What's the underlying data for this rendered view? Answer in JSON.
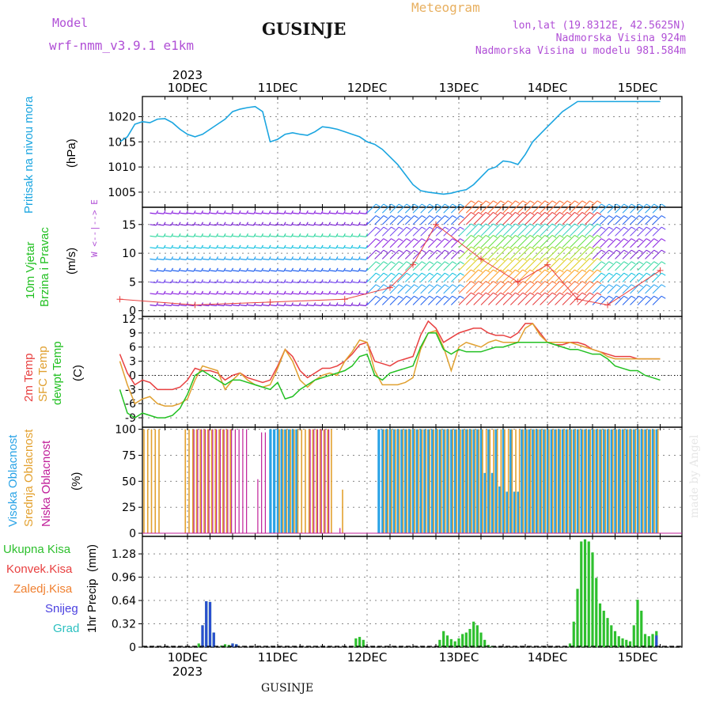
{
  "header": {
    "model_label": "Model",
    "model_name": "wrf-nmm_v3.9.1  e1km",
    "title": "GUSINJE",
    "meteogram": "Meteogram",
    "lonlat": "lon,lat (19.8312E, 42.5625N)",
    "elevation": "Nadmorska Visina 924m",
    "elevation_model": "Nadmorska Visina u modelu 981.584m",
    "year": "2023",
    "footer": "GUSINJE",
    "watermark": "made by Angel"
  },
  "days": [
    "10DEC",
    "11DEC",
    "12DEC",
    "13DEC",
    "14DEC",
    "15DEC"
  ],
  "colors": {
    "pressure": "#1aa5e0",
    "temp2m": "#e84040",
    "sfc": "#e0a030",
    "dew": "#22c022",
    "high_cloud": "#29a3e6",
    "mid_cloud": "#e3a12f",
    "low_cloud": "#c0209a",
    "precip": "#2ec02e",
    "snow": "#2a4fd0",
    "grid": "#888888"
  },
  "chart_data": [
    {
      "type": "line",
      "panel": "pressure",
      "ylabel_main": "Pritisak na nivou mora",
      "unit": "(hPa)",
      "ylim": [
        1002,
        1024
      ],
      "yticks": [
        1005,
        1010,
        1015,
        1020
      ],
      "x": [
        0,
        2,
        4,
        6,
        8,
        10,
        12,
        14,
        16,
        18,
        20,
        22,
        24,
        26,
        28,
        30,
        32,
        34,
        36,
        38,
        40,
        42,
        44,
        46,
        48,
        50,
        52,
        54,
        56,
        58,
        60,
        62,
        64,
        66,
        68,
        70,
        72,
        74,
        76,
        78,
        80,
        82,
        84,
        86,
        88,
        90,
        92,
        94,
        96,
        98,
        100,
        102,
        104,
        106,
        108,
        110,
        112,
        114,
        116,
        118,
        120,
        122,
        124,
        126,
        128,
        130,
        132,
        134,
        136,
        138,
        140,
        142,
        144
      ],
      "values": [
        1015,
        1016,
        1018.5,
        1019,
        1018.8,
        1019.5,
        1019.6,
        1018.8,
        1017.5,
        1016.5,
        1016,
        1016.5,
        1017.5,
        1018.5,
        1019.5,
        1021,
        1021.5,
        1021.8,
        1022,
        1021,
        1015,
        1015.5,
        1016.5,
        1016.8,
        1016.5,
        1016.3,
        1017,
        1018,
        1017.8,
        1017.5,
        1017,
        1016.5,
        1016,
        1015,
        1014.5,
        1013.5,
        1012,
        1010.5,
        1008.5,
        1006.5,
        1005.3,
        1005,
        1004.8,
        1004.6,
        1004.8,
        1005.2,
        1005.5,
        1006.5,
        1008,
        1009.5,
        1010,
        1011.2,
        1011,
        1010.5,
        1012.5,
        1015,
        1016.5,
        1018,
        1019.5,
        1021,
        1022,
        1023,
        1023,
        1023,
        1023,
        1023,
        1023,
        1023,
        1023,
        1023,
        1023,
        1023,
        1023
      ],
      "series": [
        {
          "name": "",
          "color_key": "pressure"
        }
      ]
    },
    {
      "type": "wind-barbs",
      "panel": "wind",
      "ylabel_main": "10m Vjetar",
      "ylabel_sub": "Brzina i Pravac",
      "unit": "(m/s)",
      "compass": "W <--|--> E",
      "ylim": [
        -1,
        18
      ],
      "yticks": [
        0,
        5,
        10,
        15
      ],
      "segments": [
        {
          "x0": 0,
          "x1": 40,
          "dir": "west",
          "speeds": [
            1,
            3,
            5,
            7,
            9,
            11,
            13,
            15,
            17
          ]
        },
        {
          "x0": 40,
          "x1": 66,
          "dir": "west",
          "speeds": [
            1,
            3,
            5,
            7,
            9,
            11,
            13,
            15,
            17
          ]
        },
        {
          "x0": 66,
          "x1": 90,
          "dir": "southwest",
          "speeds": [
            1,
            3,
            5,
            7,
            9,
            11,
            13,
            15,
            17
          ]
        },
        {
          "x0": 90,
          "x1": 126,
          "dir": "southwest-strong",
          "speeds": [
            1,
            3,
            5,
            7,
            9,
            11,
            13,
            15,
            17
          ]
        },
        {
          "x0": 126,
          "x1": 144,
          "dir": "southwest",
          "speeds": [
            1,
            3,
            5,
            7,
            9,
            11,
            13,
            15,
            17
          ]
        }
      ],
      "wind_speed_line": [
        {
          "x": 0,
          "y": 2
        },
        {
          "x": 20,
          "y": 1
        },
        {
          "x": 40,
          "y": 1.5
        },
        {
          "x": 60,
          "y": 2
        },
        {
          "x": 72,
          "y": 4
        },
        {
          "x": 78,
          "y": 8
        },
        {
          "x": 84,
          "y": 15
        },
        {
          "x": 96,
          "y": 9
        },
        {
          "x": 106,
          "y": 5
        },
        {
          "x": 114,
          "y": 8
        },
        {
          "x": 122,
          "y": 2
        },
        {
          "x": 130,
          "y": 1
        },
        {
          "x": 144,
          "y": 7
        }
      ]
    },
    {
      "type": "line",
      "panel": "temperature",
      "ylabels": [
        "2m Temp",
        "SFC Temp",
        "dewpt Temp"
      ],
      "unit": "(C)",
      "ylim": [
        -11,
        12.5
      ],
      "yticks": [
        -9,
        -6,
        -3,
        0,
        3,
        6,
        9,
        12
      ],
      "x": [
        0,
        2,
        4,
        6,
        8,
        10,
        12,
        14,
        16,
        18,
        20,
        22,
        24,
        26,
        28,
        30,
        32,
        34,
        36,
        38,
        40,
        42,
        44,
        46,
        48,
        50,
        52,
        54,
        56,
        58,
        60,
        62,
        64,
        66,
        68,
        70,
        72,
        74,
        76,
        78,
        80,
        82,
        84,
        86,
        88,
        90,
        92,
        94,
        96,
        98,
        100,
        102,
        104,
        106,
        108,
        110,
        112,
        114,
        116,
        118,
        120,
        122,
        124,
        126,
        128,
        130,
        132,
        134,
        136,
        138,
        140,
        142,
        144
      ],
      "series": [
        {
          "name": "2m Temp",
          "color_key": "temp2m",
          "values": [
            4.5,
            0.5,
            -2,
            -1,
            -1.5,
            -3,
            -3,
            -3,
            -2.5,
            -1,
            1.5,
            1,
            1,
            0.5,
            -1,
            0,
            0.5,
            -0.5,
            -1,
            -1.5,
            -1,
            2,
            5.5,
            4,
            1,
            -0.5,
            0.5,
            1.5,
            1.5,
            2,
            3,
            4.5,
            6.5,
            7,
            3,
            2.5,
            2,
            3,
            3.5,
            4,
            8.5,
            11.5,
            10,
            7,
            8,
            9,
            9.5,
            10,
            10,
            9,
            8.5,
            8.5,
            8,
            9,
            11,
            11,
            9,
            7,
            6.5,
            6.5,
            7,
            7,
            6.5,
            5.5,
            5,
            4.5,
            4,
            4,
            4,
            3.5,
            3.5,
            3.5,
            3.5
          ]
        },
        {
          "name": "SFC Temp",
          "color_key": "sfc",
          "values": [
            3,
            -2,
            -6,
            -5,
            -4.5,
            -6,
            -6.5,
            -6.5,
            -6,
            -5,
            -1,
            2,
            1.5,
            1,
            -3,
            -1,
            0.5,
            -1,
            -2,
            -2.5,
            -2,
            1.5,
            5.5,
            3,
            -1,
            -2.5,
            -1,
            0,
            0.5,
            0,
            3,
            5,
            7.5,
            7,
            1,
            -2,
            -2,
            -2,
            -1.5,
            -0.5,
            5.5,
            9,
            9.5,
            6,
            1,
            6,
            7,
            6.5,
            6,
            7,
            7.5,
            7,
            7,
            7,
            10,
            11,
            8.5,
            7,
            7,
            7,
            7,
            6.5,
            6,
            5.5,
            5,
            4,
            3.5,
            3.5,
            3.5,
            3.5,
            3.5,
            3.5,
            3.5
          ]
        },
        {
          "name": "dewpt Temp",
          "color_key": "dew",
          "values": [
            -3,
            -8,
            -9,
            -8,
            -8.5,
            -9,
            -9,
            -8.5,
            -7,
            -4,
            0,
            1,
            0,
            -1,
            -2,
            -1,
            -1,
            -1.5,
            -2,
            -2.5,
            -3,
            -1.5,
            -5,
            -4.5,
            -3,
            -2,
            -1,
            -0.5,
            0,
            0.5,
            1,
            2,
            4,
            4.5,
            0,
            -1,
            0.5,
            1,
            1.5,
            2,
            6,
            9,
            9,
            5.5,
            4.5,
            5.5,
            5,
            5,
            5,
            5.5,
            6,
            6,
            6.5,
            7,
            7,
            7,
            7,
            7,
            6.5,
            6,
            5.5,
            5.5,
            5,
            4.5,
            4.5,
            3.5,
            2,
            1.5,
            1,
            1,
            0,
            -0.5,
            -1
          ]
        }
      ]
    },
    {
      "type": "bar",
      "panel": "clouds",
      "ylabels": [
        "Visoka Oblacnost",
        "Srednja Oblacnost",
        "Niska Oblacnost"
      ],
      "unit": "(%)",
      "ylim": [
        -3,
        102
      ],
      "yticks": [
        0,
        25,
        50,
        75,
        100
      ],
      "series": [
        {
          "name": "Visoka Oblacnost",
          "color_key": "high_cloud",
          "ranges": [
            [
              1,
              7,
              100
            ],
            [
              40,
              48,
              100
            ],
            [
              69,
              144,
              100
            ]
          ],
          "dips": [
            [
              97,
              58
            ],
            [
              99,
              58
            ],
            [
              101,
              45
            ],
            [
              103,
              40
            ],
            [
              105,
              40
            ],
            [
              106,
              40
            ]
          ]
        },
        {
          "name": "Srednja Oblacnost",
          "color_key": "mid_cloud",
          "ranges": [
            [
              6,
              11,
              100
            ],
            [
              17,
              30,
              100
            ],
            [
              42,
              57,
              100
            ],
            [
              70,
              144,
              100
            ]
          ],
          "dips": [
            [
              59,
              42
            ]
          ]
        },
        {
          "name": "Niska Oblacnost",
          "color_key": "low_cloud",
          "ranges": [
            [
              0,
              1,
              10
            ],
            [
              19,
              34,
              100
            ],
            [
              50,
              56,
              100
            ]
          ],
          "singles": [
            [
              36,
              52
            ],
            [
              37,
              97
            ],
            [
              38,
              97
            ],
            [
              58,
              5
            ]
          ]
        }
      ]
    },
    {
      "type": "bar",
      "panel": "precipitation",
      "ylabel_main": "1hr Precip",
      "unit": "(mm)",
      "legend": [
        "Ukupna Kisa",
        "Konvek.Kisa",
        "Zaledj.Kisa",
        "Snijeg",
        "Grad"
      ],
      "legend_colors": [
        "#2ec02e",
        "#e84040",
        "#f08030",
        "#4a40e0",
        "#2cc0c0"
      ],
      "ylim": [
        0,
        1.52
      ],
      "yticks": [
        0,
        0.32,
        0.64,
        0.96,
        1.28
      ],
      "x": [
        21,
        22,
        23,
        24,
        25,
        27,
        28,
        29,
        30,
        31,
        63,
        64,
        65,
        85,
        86,
        87,
        88,
        89,
        90,
        91,
        92,
        93,
        94,
        95,
        96,
        97,
        98,
        99,
        120,
        121,
        122,
        123,
        124,
        125,
        126,
        127,
        128,
        129,
        130,
        131,
        132,
        133,
        134,
        135,
        136,
        137,
        138,
        139,
        140,
        141,
        142,
        143
      ],
      "values": [
        0.05,
        0.3,
        0.63,
        0.62,
        0.2,
        0.02,
        0.04,
        0.03,
        0.05,
        0.04,
        0.12,
        0.14,
        0.1,
        0.1,
        0.22,
        0.16,
        0.11,
        0.08,
        0.12,
        0.18,
        0.2,
        0.25,
        0.35,
        0.3,
        0.2,
        0.1,
        0.03,
        0.01,
        0.05,
        0.35,
        0.8,
        1.45,
        1.48,
        1.45,
        1.3,
        0.95,
        0.6,
        0.5,
        0.4,
        0.3,
        0.22,
        0.15,
        0.12,
        0.1,
        0.08,
        0.3,
        0.65,
        0.5,
        0.18,
        0.15,
        0.18,
        0.22
      ],
      "snow_x": [
        22,
        23,
        24,
        25,
        30,
        31,
        143
      ],
      "snow_values": [
        0.3,
        0.63,
        0.62,
        0.2,
        0.05,
        0.04,
        0.16
      ]
    }
  ]
}
